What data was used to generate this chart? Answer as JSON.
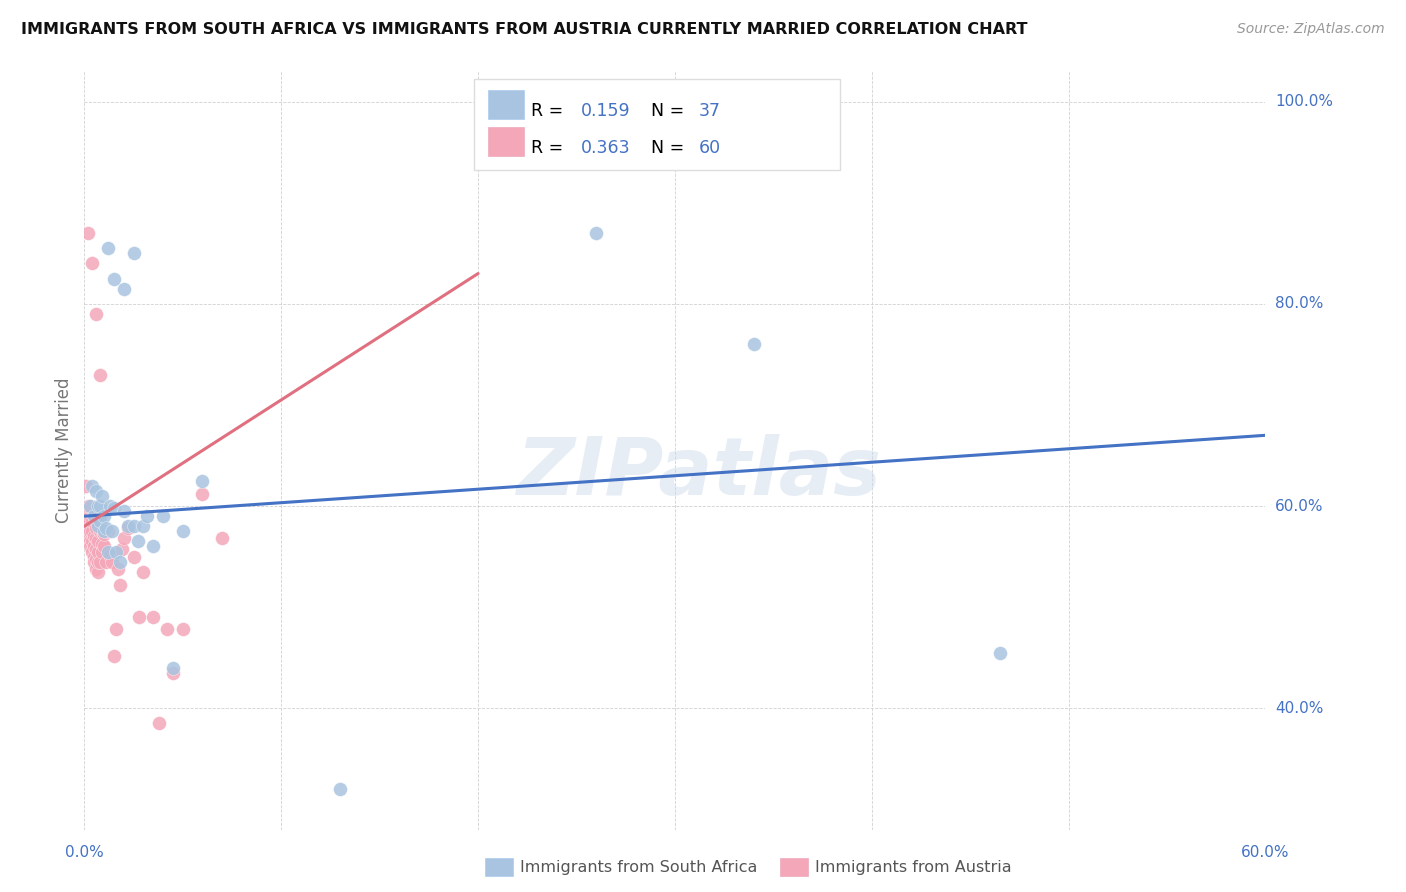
{
  "title": "IMMIGRANTS FROM SOUTH AFRICA VS IMMIGRANTS FROM AUSTRIA CURRENTLY MARRIED CORRELATION CHART",
  "source": "Source: ZipAtlas.com",
  "ylabel": "Currently Married",
  "xlim": [
    0.0,
    0.6
  ],
  "ylim": [
    0.28,
    1.03
  ],
  "xticks": [
    0.0,
    0.1,
    0.2,
    0.3,
    0.4,
    0.5,
    0.6
  ],
  "yticks": [
    0.4,
    0.6,
    0.8,
    1.0
  ],
  "xticklabels": [
    "0.0%",
    "",
    "",
    "",
    "",
    "",
    "60.0%"
  ],
  "yticklabels": [
    "40.0%",
    "60.0%",
    "80.0%",
    "100.0%"
  ],
  "watermark": "ZIPatlas",
  "color_blue": "#a8c4e0",
  "color_pink": "#f4a7b9",
  "color_blue_text": "#4472c4",
  "color_pink_text": "#e07080",
  "line_blue": "#4472c4",
  "line_pink": "#e07080",
  "blue_line_x0": 0.0,
  "blue_line_y0": 0.59,
  "blue_line_x1": 0.6,
  "blue_line_y1": 0.67,
  "pink_line_x0": 0.0,
  "pink_line_y0": 0.58,
  "pink_line_x1": 0.2,
  "pink_line_y1": 0.83,
  "blue_x": [
    0.003,
    0.004,
    0.005,
    0.006,
    0.007,
    0.007,
    0.008,
    0.008,
    0.009,
    0.01,
    0.01,
    0.011,
    0.012,
    0.013,
    0.014,
    0.015,
    0.016,
    0.018,
    0.02,
    0.022,
    0.025,
    0.027,
    0.03,
    0.032,
    0.035,
    0.04,
    0.05,
    0.06,
    0.02,
    0.025,
    0.015,
    0.012,
    0.13,
    0.26,
    0.465,
    0.34,
    0.045
  ],
  "blue_y": [
    0.6,
    0.62,
    0.59,
    0.615,
    0.6,
    0.58,
    0.585,
    0.6,
    0.61,
    0.575,
    0.59,
    0.578,
    0.555,
    0.6,
    0.575,
    0.598,
    0.555,
    0.545,
    0.595,
    0.58,
    0.58,
    0.565,
    0.58,
    0.59,
    0.56,
    0.59,
    0.575,
    0.625,
    0.815,
    0.85,
    0.825,
    0.855,
    0.32,
    0.87,
    0.455,
    0.76,
    0.44
  ],
  "pink_x": [
    0.001,
    0.001,
    0.002,
    0.002,
    0.002,
    0.003,
    0.003,
    0.003,
    0.003,
    0.004,
    0.004,
    0.004,
    0.004,
    0.005,
    0.005,
    0.005,
    0.005,
    0.005,
    0.006,
    0.006,
    0.006,
    0.006,
    0.006,
    0.007,
    0.007,
    0.007,
    0.007,
    0.008,
    0.008,
    0.008,
    0.009,
    0.009,
    0.009,
    0.01,
    0.01,
    0.011,
    0.012,
    0.013,
    0.014,
    0.015,
    0.016,
    0.017,
    0.018,
    0.019,
    0.02,
    0.022,
    0.025,
    0.028,
    0.03,
    0.035,
    0.002,
    0.004,
    0.006,
    0.008,
    0.038,
    0.042,
    0.045,
    0.05,
    0.06,
    0.07
  ],
  "pink_y": [
    0.59,
    0.62,
    0.58,
    0.6,
    0.57,
    0.565,
    0.575,
    0.585,
    0.56,
    0.555,
    0.565,
    0.575,
    0.585,
    0.55,
    0.56,
    0.57,
    0.545,
    0.59,
    0.538,
    0.548,
    0.558,
    0.568,
    0.578,
    0.535,
    0.545,
    0.555,
    0.565,
    0.575,
    0.545,
    0.59,
    0.562,
    0.575,
    0.555,
    0.56,
    0.572,
    0.545,
    0.575,
    0.552,
    0.545,
    0.452,
    0.478,
    0.538,
    0.522,
    0.558,
    0.568,
    0.578,
    0.55,
    0.49,
    0.535,
    0.49,
    0.87,
    0.84,
    0.79,
    0.73,
    0.385,
    0.478,
    0.435,
    0.478,
    0.612,
    0.568
  ]
}
